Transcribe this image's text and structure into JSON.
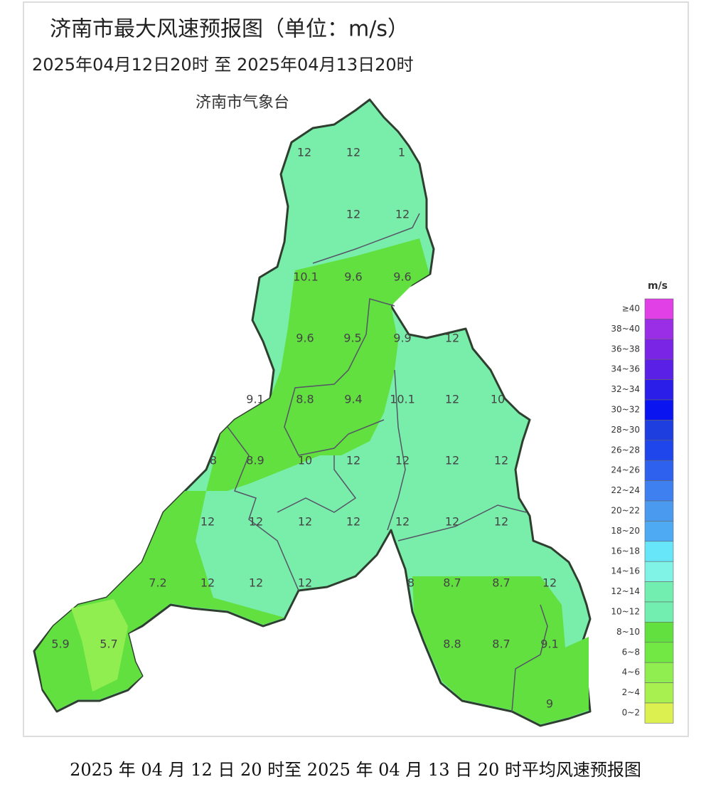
{
  "header": {
    "title": "济南市最大风速预报图（单位：m/s）",
    "period": "2025年04月12日20时  至  2025年04月13日20时",
    "issuer": "济南市气象台"
  },
  "map": {
    "labels": [
      "12",
      "12",
      "1",
      "12",
      "12",
      "10.1",
      "9.6",
      "9.6",
      "9.6",
      "9.5",
      "9.9",
      "12",
      "9.1",
      "8.8",
      "9.4",
      "10.1",
      "12",
      "10",
      "8",
      "8.9",
      "10",
      "12",
      "12",
      "12",
      "12",
      "12",
      "12",
      "12",
      "12",
      "12",
      "12",
      "12",
      "7.2",
      "12",
      "12",
      "12",
      "8",
      "8.7",
      "8.7",
      "12",
      "5.9",
      "5.7",
      "8.8",
      "8.7",
      "9.1",
      "9"
    ]
  },
  "legend": {
    "unit": "m/s",
    "items": [
      {
        "label": "≥40",
        "color": "#e040e6"
      },
      {
        "label": "38~40",
        "color": "#9a2ee6"
      },
      {
        "label": "36~38",
        "color": "#7a24e6"
      },
      {
        "label": "34~36",
        "color": "#5a20e6"
      },
      {
        "label": "32~34",
        "color": "#2a1ee8"
      },
      {
        "label": "30~32",
        "color": "#0a14f0"
      },
      {
        "label": "28~30",
        "color": "#1e3ee0"
      },
      {
        "label": "26~28",
        "color": "#1e46ea"
      },
      {
        "label": "24~26",
        "color": "#2e62ee"
      },
      {
        "label": "22~24",
        "color": "#3e80f0"
      },
      {
        "label": "20~22",
        "color": "#4a9af0"
      },
      {
        "label": "18~20",
        "color": "#4eaaf2"
      },
      {
        "label": "16~18",
        "color": "#66e6f8"
      },
      {
        "label": "14~16",
        "color": "#80f2e6"
      },
      {
        "label": "12~14",
        "color": "#72eeb0"
      },
      {
        "label": "10~12",
        "color": "#72eeb0"
      },
      {
        "label": "8~10",
        "color": "#62e040"
      },
      {
        "label": "6~8",
        "color": "#72e844"
      },
      {
        "label": "4~6",
        "color": "#90ee50"
      },
      {
        "label": "2~4",
        "color": "#a8f050"
      },
      {
        "label": "0~2",
        "color": "#dcf050"
      }
    ]
  },
  "caption": "2025 年 04 月 12 日 20 时至 2025 年 04 月 13 日 20 时平均风速预报图"
}
